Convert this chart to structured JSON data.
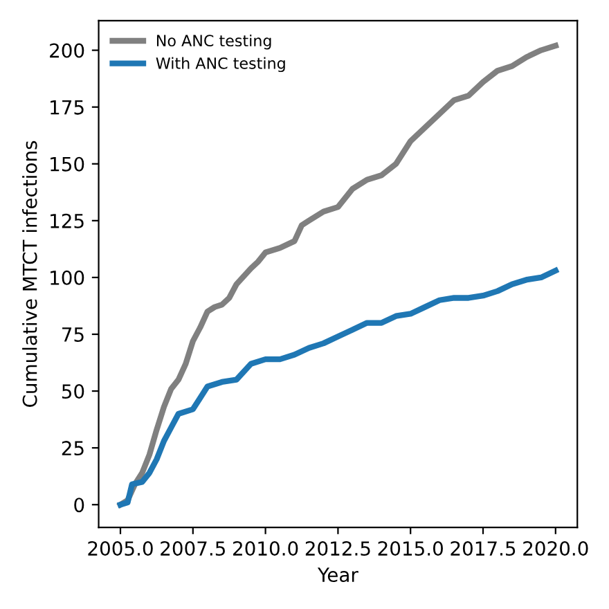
{
  "chart_data": {
    "type": "line",
    "xlabel": "Year",
    "ylabel": "Cumulative MTCT infections",
    "xlim": [
      2004.25,
      2020.75
    ],
    "ylim": [
      -10,
      213
    ],
    "xticks": [
      {
        "value": 2005,
        "label": "2005.0"
      },
      {
        "value": 2007.5,
        "label": "2007.5"
      },
      {
        "value": 2010,
        "label": "2010.0"
      },
      {
        "value": 2012.5,
        "label": "2012.5"
      },
      {
        "value": 2015,
        "label": "2015.0"
      },
      {
        "value": 2017.5,
        "label": "2017.5"
      },
      {
        "value": 2020,
        "label": "2020.0"
      }
    ],
    "yticks": [
      0,
      25,
      50,
      75,
      100,
      125,
      150,
      175,
      200
    ],
    "legend": "top left",
    "grid": false,
    "line_style": "solid",
    "marker": "none",
    "series": [
      {
        "name": "No ANC testing",
        "color": "#808080",
        "x": [
          2005,
          2005.25,
          2005.5,
          2005.75,
          2006,
          2006.25,
          2006.5,
          2006.75,
          2007,
          2007.25,
          2007.5,
          2007.75,
          2008,
          2008.25,
          2008.5,
          2008.75,
          2009,
          2009.5,
          2009.75,
          2010,
          2010.5,
          2011,
          2011.25,
          2011.5,
          2012,
          2012.5,
          2013,
          2013.5,
          2014,
          2014.5,
          2015,
          2015.5,
          2016,
          2016.5,
          2017,
          2017.5,
          2018,
          2018.5,
          2019,
          2019.5,
          2020
        ],
        "values": [
          0,
          2,
          9,
          14,
          22,
          33,
          43,
          51,
          55,
          62,
          72,
          78,
          85,
          87,
          88,
          91,
          97,
          104,
          107,
          111,
          113,
          116,
          123,
          125,
          129,
          131,
          139,
          143,
          145,
          150,
          160,
          166,
          172,
          178,
          180,
          186,
          191,
          193,
          197,
          200,
          202
        ]
      },
      {
        "name": "With ANC testing",
        "color": "#1f77b4",
        "x": [
          2005,
          2005.25,
          2005.4,
          2005.75,
          2006,
          2006.25,
          2006.5,
          2006.75,
          2007,
          2007.5,
          2007.75,
          2008,
          2008.5,
          2009,
          2009.5,
          2010,
          2010.5,
          2011,
          2011.5,
          2012,
          2012.5,
          2013,
          2013.5,
          2014,
          2014.5,
          2015,
          2015.5,
          2016,
          2016.5,
          2017,
          2017.5,
          2018,
          2018.5,
          2019,
          2019.5,
          2020
        ],
        "values": [
          0,
          1,
          9,
          10,
          14,
          20,
          28,
          34,
          40,
          42,
          47,
          52,
          54,
          55,
          62,
          64,
          64,
          66,
          69,
          71,
          74,
          77,
          80,
          80,
          83,
          84,
          87,
          90,
          91,
          91,
          92,
          94,
          97,
          99,
          100,
          103
        ]
      }
    ]
  }
}
